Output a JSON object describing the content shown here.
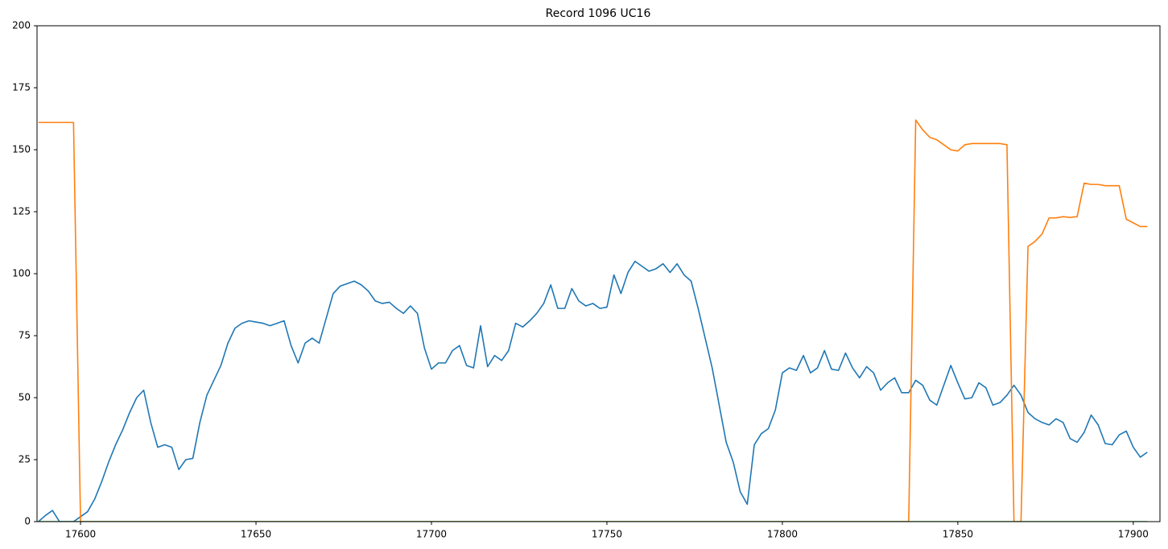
{
  "chart_data": {
    "type": "line",
    "title": "Record 1096 UC16",
    "x": [
      17588,
      17590,
      17592,
      17594,
      17596,
      17598,
      17600,
      17602,
      17604,
      17606,
      17608,
      17610,
      17612,
      17614,
      17616,
      17618,
      17620,
      17622,
      17624,
      17626,
      17628,
      17630,
      17632,
      17634,
      17636,
      17638,
      17640,
      17642,
      17644,
      17646,
      17648,
      17650,
      17652,
      17654,
      17656,
      17658,
      17660,
      17662,
      17664,
      17666,
      17668,
      17670,
      17672,
      17674,
      17676,
      17678,
      17680,
      17682,
      17684,
      17686,
      17688,
      17690,
      17692,
      17694,
      17696,
      17698,
      17700,
      17702,
      17704,
      17706,
      17708,
      17710,
      17712,
      17714,
      17716,
      17718,
      17720,
      17722,
      17724,
      17726,
      17728,
      17730,
      17732,
      17734,
      17736,
      17738,
      17740,
      17742,
      17744,
      17746,
      17748,
      17750,
      17752,
      17754,
      17756,
      17758,
      17760,
      17762,
      17764,
      17766,
      17768,
      17770,
      17772,
      17774,
      17776,
      17778,
      17780,
      17782,
      17784,
      17786,
      17788,
      17790,
      17792,
      17794,
      17796,
      17798,
      17800,
      17802,
      17804,
      17806,
      17808,
      17810,
      17812,
      17814,
      17816,
      17818,
      17820,
      17822,
      17824,
      17826,
      17828,
      17830,
      17832,
      17834,
      17836,
      17838,
      17840,
      17842,
      17844,
      17846,
      17848,
      17850,
      17852,
      17854,
      17856,
      17858,
      17860,
      17862,
      17864,
      17866,
      17868,
      17870,
      17872,
      17874,
      17876,
      17878,
      17880,
      17882,
      17884,
      17886,
      17888,
      17890,
      17892,
      17894,
      17896,
      17898,
      17900,
      17902,
      17904
    ],
    "series": [
      {
        "color": "#1f77b4",
        "values": [
          0,
          2.5,
          4.5,
          0,
          0,
          0,
          2,
          4,
          9,
          16,
          24,
          31,
          37,
          44,
          50,
          53,
          40,
          30,
          31,
          30,
          21,
          25,
          25.5,
          40,
          51,
          57,
          63,
          72,
          78,
          80,
          81,
          80.5,
          80,
          79,
          80,
          81,
          71,
          64,
          72,
          74,
          72,
          82,
          92,
          95,
          96,
          97,
          95.5,
          93,
          89,
          88,
          88.5,
          86,
          84,
          87,
          84,
          70,
          61.5,
          64,
          64,
          69,
          71,
          63,
          62,
          79,
          62.5,
          67,
          65,
          69,
          80,
          78.5,
          81,
          84,
          88,
          95.5,
          86,
          86,
          94,
          89,
          87,
          88,
          86,
          86.5,
          99.5,
          92,
          100.5,
          105,
          103,
          101,
          102,
          104,
          100.5,
          104,
          99.5,
          97,
          86,
          74,
          62,
          47,
          32,
          24,
          12,
          7,
          31,
          35.5,
          37.5,
          45,
          60,
          62,
          61,
          67,
          60,
          62,
          69,
          61.5,
          61,
          68,
          62,
          58,
          62.5,
          60,
          53,
          56,
          58,
          52,
          52,
          57,
          55,
          49,
          47,
          55,
          63,
          56,
          49.5,
          50,
          56,
          54,
          47,
          48,
          51,
          55,
          51,
          44,
          41.5,
          40,
          39,
          41.5,
          40,
          33.5,
          32,
          36,
          43,
          39,
          31.5,
          31,
          35,
          36.5,
          30,
          26,
          28
        ]
      },
      {
        "color": "#ff7f0e",
        "values": [
          161,
          161,
          161,
          161,
          161,
          161,
          0,
          0,
          0,
          0,
          0,
          0,
          0,
          0,
          0,
          0,
          0,
          0,
          0,
          0,
          0,
          0,
          0,
          0,
          0,
          0,
          0,
          0,
          0,
          0,
          0,
          0,
          0,
          0,
          0,
          0,
          0,
          0,
          0,
          0,
          0,
          0,
          0,
          0,
          0,
          0,
          0,
          0,
          0,
          0,
          0,
          0,
          0,
          0,
          0,
          0,
          0,
          0,
          0,
          0,
          0,
          0,
          0,
          0,
          0,
          0,
          0,
          0,
          0,
          0,
          0,
          0,
          0,
          0,
          0,
          0,
          0,
          0,
          0,
          0,
          0,
          0,
          0,
          0,
          0,
          0,
          0,
          0,
          0,
          0,
          0,
          0,
          0,
          0,
          0,
          0,
          0,
          0,
          0,
          0,
          0,
          0,
          0,
          0,
          0,
          0,
          0,
          0,
          0,
          0,
          0,
          0,
          0,
          0,
          0,
          0,
          0,
          0,
          0,
          0,
          0,
          0,
          0,
          0,
          0,
          162,
          158,
          155,
          154,
          152,
          150,
          149.5,
          152,
          152.5,
          152.5,
          152.5,
          152.5,
          152.5,
          152,
          0,
          0,
          111,
          113,
          116,
          122.5,
          122.5,
          123,
          122.7,
          123,
          136.5,
          136,
          136,
          135.5,
          135.5,
          135.5,
          122,
          120.5,
          119,
          119
        ]
      },
      {
        "color": "#2ca02c",
        "values": [
          0,
          0,
          0,
          0,
          0,
          0,
          0,
          0,
          0,
          0,
          0,
          0,
          0,
          0,
          0,
          0,
          0,
          0,
          0,
          0,
          0,
          0,
          0,
          0,
          0,
          0,
          0,
          0,
          0,
          0,
          0,
          0,
          0,
          0,
          0,
          0,
          0,
          0,
          0,
          0,
          0,
          0,
          0,
          0,
          0,
          0,
          0,
          0,
          0,
          0,
          0,
          0,
          0,
          0,
          0,
          0,
          0,
          0,
          0,
          0,
          0,
          0,
          0,
          0,
          0,
          0,
          0,
          0,
          0,
          0,
          0,
          0,
          0,
          0,
          0,
          0,
          0,
          0,
          0,
          0,
          0,
          0,
          0,
          0,
          0,
          0,
          0,
          0,
          0,
          0,
          0,
          0,
          0,
          0,
          0,
          0,
          0,
          0,
          0,
          0,
          0,
          0,
          0,
          0,
          0,
          0,
          0,
          0,
          0,
          0,
          0,
          0,
          0,
          0,
          0,
          0,
          0,
          0,
          0,
          0,
          0,
          0,
          0,
          0,
          0,
          0,
          0,
          0,
          0,
          0,
          0,
          0,
          0,
          0,
          0,
          0,
          0,
          0,
          0,
          0,
          0,
          0,
          0,
          0,
          0,
          0,
          0,
          0,
          0,
          0,
          0,
          0,
          0,
          0,
          0,
          0,
          0,
          0,
          0
        ]
      }
    ],
    "xlim": [
      17587.6,
      17907.6
    ],
    "ylim": [
      0,
      200
    ],
    "xticks": [
      17600,
      17650,
      17700,
      17750,
      17800,
      17850,
      17900
    ],
    "yticks": [
      0,
      25,
      50,
      75,
      100,
      125,
      150,
      175,
      200
    ]
  }
}
